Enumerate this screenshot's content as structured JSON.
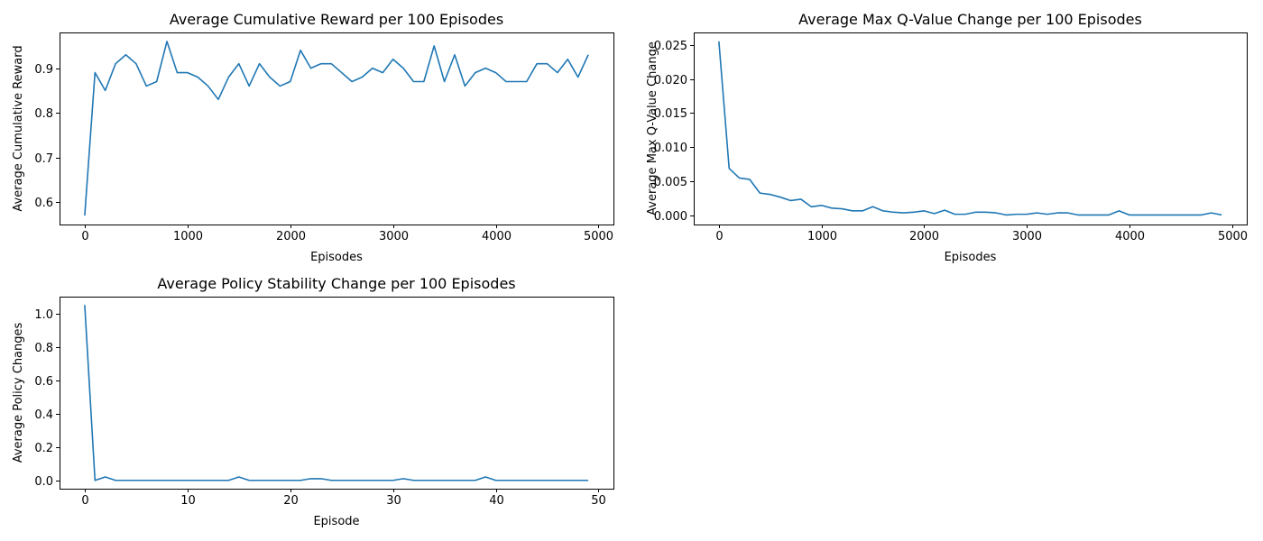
{
  "colors": {
    "series": "#1f77b4"
  },
  "chart_data": [
    {
      "type": "line",
      "title": "Average Cumulative Reward per 100 Episodes",
      "xlabel": "Episodes",
      "ylabel": "Average Cumulative Reward",
      "xlim": [
        -245,
        5145
      ],
      "ylim": [
        0.55,
        0.98
      ],
      "xticks": [
        0,
        1000,
        2000,
        3000,
        4000,
        5000
      ],
      "xtick_labels": [
        "0",
        "1000",
        "2000",
        "3000",
        "4000",
        "5000"
      ],
      "yticks": [
        0.6,
        0.7,
        0.8,
        0.9
      ],
      "ytick_labels": [
        "0.6",
        "0.7",
        "0.8",
        "0.9"
      ],
      "grid": false,
      "series": [
        {
          "x": [
            0,
            100,
            200,
            300,
            400,
            500,
            600,
            700,
            800,
            900,
            1000,
            1100,
            1200,
            1300,
            1400,
            1500,
            1600,
            1700,
            1800,
            1900,
            2000,
            2100,
            2200,
            2300,
            2400,
            2500,
            2600,
            2700,
            2800,
            2900,
            3000,
            3100,
            3200,
            3300,
            3400,
            3500,
            3600,
            3700,
            3800,
            3900,
            4000,
            4100,
            4200,
            4300,
            4400,
            4500,
            4600,
            4700,
            4800,
            4900
          ],
          "values": [
            0.57,
            0.89,
            0.85,
            0.91,
            0.93,
            0.91,
            0.86,
            0.87,
            0.96,
            0.89,
            0.89,
            0.88,
            0.86,
            0.83,
            0.88,
            0.91,
            0.86,
            0.91,
            0.88,
            0.86,
            0.87,
            0.94,
            0.9,
            0.91,
            0.91,
            0.89,
            0.87,
            0.88,
            0.9,
            0.89,
            0.92,
            0.9,
            0.87,
            0.87,
            0.95,
            0.87,
            0.93,
            0.86,
            0.89,
            0.9,
            0.89,
            0.87,
            0.87,
            0.87,
            0.91,
            0.91,
            0.89,
            0.92,
            0.88,
            0.93
          ]
        }
      ]
    },
    {
      "type": "line",
      "title": "Average Max Q-Value Change per 100 Episodes",
      "xlabel": "Episodes",
      "ylabel": "Average Max Q-Value Change",
      "xlim": [
        -245,
        5145
      ],
      "ylim": [
        -0.0013,
        0.0268
      ],
      "xticks": [
        0,
        1000,
        2000,
        3000,
        4000,
        5000
      ],
      "xtick_labels": [
        "0",
        "1000",
        "2000",
        "3000",
        "4000",
        "5000"
      ],
      "yticks": [
        0.0,
        0.005,
        0.01,
        0.015,
        0.02,
        0.025
      ],
      "ytick_labels": [
        "0.000",
        "0.005",
        "0.010",
        "0.015",
        "0.020",
        "0.025"
      ],
      "grid": false,
      "series": [
        {
          "x": [
            0,
            100,
            200,
            300,
            400,
            500,
            600,
            700,
            800,
            900,
            1000,
            1100,
            1200,
            1300,
            1400,
            1500,
            1600,
            1700,
            1800,
            1900,
            2000,
            2100,
            2200,
            2300,
            2400,
            2500,
            2600,
            2700,
            2800,
            2900,
            3000,
            3100,
            3200,
            3300,
            3400,
            3500,
            3600,
            3700,
            3800,
            3900,
            4000,
            4100,
            4200,
            4300,
            4400,
            4500,
            4600,
            4700,
            4800,
            4900
          ],
          "values": [
            0.0255,
            0.0069,
            0.0055,
            0.0053,
            0.0033,
            0.0031,
            0.0027,
            0.0022,
            0.0024,
            0.0013,
            0.0015,
            0.0011,
            0.001,
            0.0007,
            0.0007,
            0.0013,
            0.0007,
            0.0005,
            0.0004,
            0.0005,
            0.0007,
            0.0003,
            0.0008,
            0.0002,
            0.0002,
            0.0005,
            0.0005,
            0.0004,
            0.0001,
            0.0002,
            0.0002,
            0.0004,
            0.0002,
            0.0004,
            0.0004,
            0.0001,
            0.0001,
            0.0001,
            0.0001,
            0.0007,
            0.0001,
            0.0001,
            0.0001,
            0.0001,
            0.0001,
            0.0001,
            0.0001,
            0.0001,
            0.0004,
            0.0001
          ]
        }
      ]
    },
    {
      "type": "line",
      "title": "Average Policy Stability Change per 100 Episodes",
      "xlabel": "Episode",
      "ylabel": "Average Policy Changes",
      "xlim": [
        -2.45,
        51.45
      ],
      "ylim": [
        -0.05,
        1.1
      ],
      "xticks": [
        0,
        10,
        20,
        30,
        40,
        50
      ],
      "xtick_labels": [
        "0",
        "10",
        "20",
        "30",
        "40",
        "50"
      ],
      "yticks": [
        0.0,
        0.2,
        0.4,
        0.6,
        0.8,
        1.0
      ],
      "ytick_labels": [
        "0.0",
        "0.2",
        "0.4",
        "0.6",
        "0.8",
        "1.0"
      ],
      "grid": false,
      "series": [
        {
          "x": [
            0,
            1,
            2,
            3,
            4,
            5,
            6,
            7,
            8,
            9,
            10,
            11,
            12,
            13,
            14,
            15,
            16,
            17,
            18,
            19,
            20,
            21,
            22,
            23,
            24,
            25,
            26,
            27,
            28,
            29,
            30,
            31,
            32,
            33,
            34,
            35,
            36,
            37,
            38,
            39,
            40,
            41,
            42,
            43,
            44,
            45,
            46,
            47,
            48,
            49
          ],
          "values": [
            1.05,
            0.0,
            0.02,
            0.0,
            0.0,
            0.0,
            0.0,
            0.0,
            0.0,
            0.0,
            0.0,
            0.0,
            0.0,
            0.0,
            0.0,
            0.02,
            0.0,
            0.0,
            0.0,
            0.0,
            0.0,
            0.0,
            0.01,
            0.01,
            0.0,
            0.0,
            0.0,
            0.0,
            0.0,
            0.0,
            0.0,
            0.01,
            0.0,
            0.0,
            0.0,
            0.0,
            0.0,
            0.0,
            0.0,
            0.02,
            0.0,
            0.0,
            0.0,
            0.0,
            0.0,
            0.0,
            0.0,
            0.0,
            0.0,
            0.0
          ]
        }
      ]
    }
  ]
}
